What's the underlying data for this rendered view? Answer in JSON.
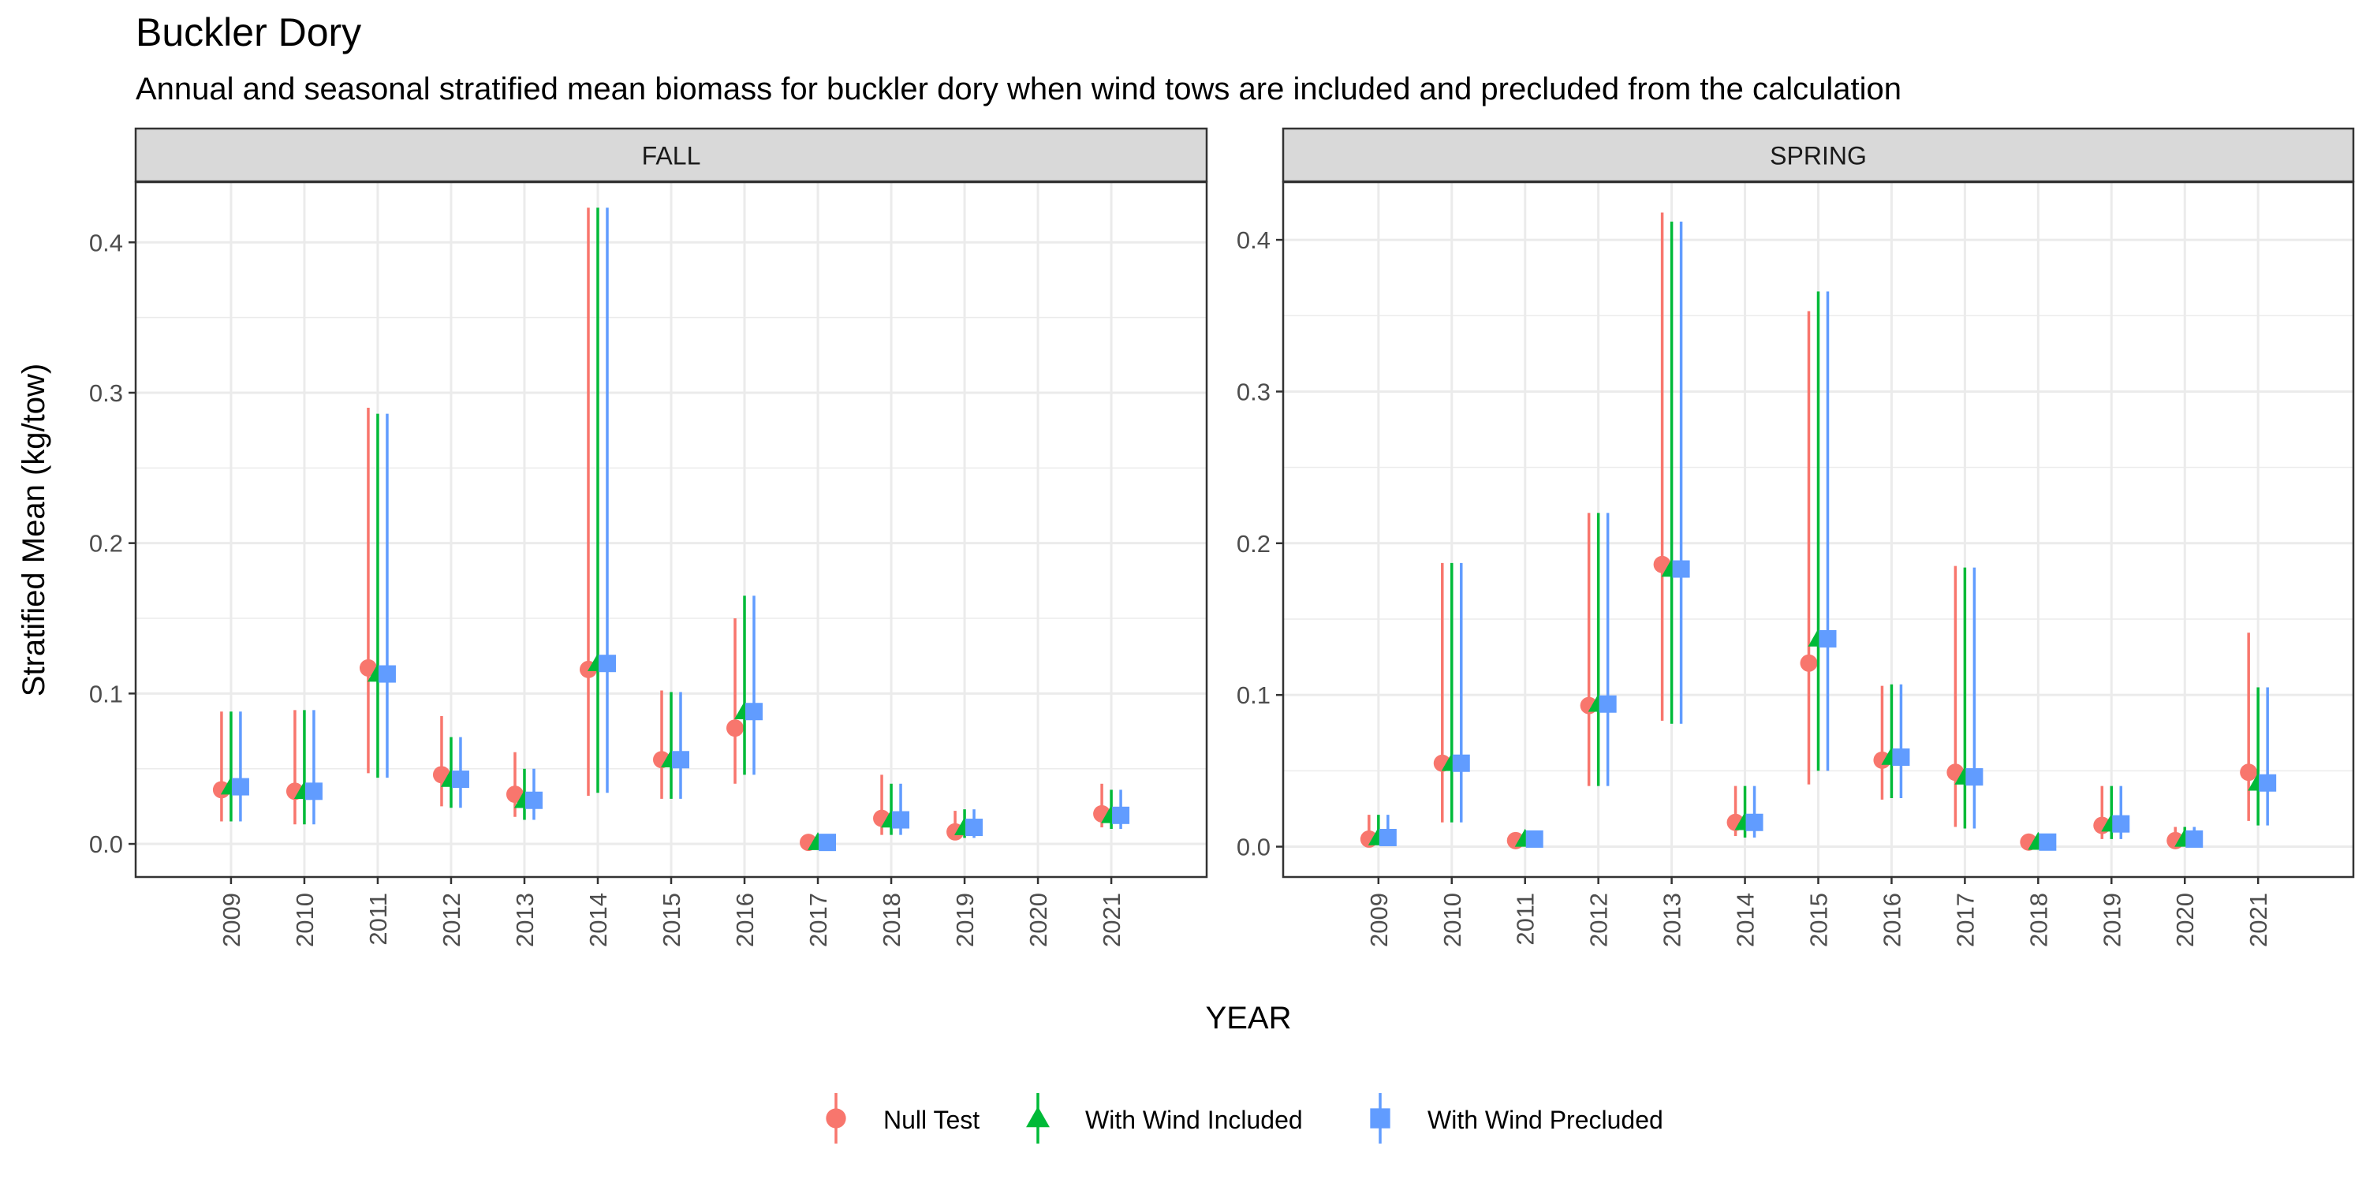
{
  "title": "Buckler Dory",
  "subtitle": "Annual and seasonal stratified mean biomass for buckler dory when wind tows are included and precluded from the calculation",
  "xlabel": "YEAR",
  "ylabel": "Stratified Mean (kg/tow)",
  "colors": {
    "null_test": "#F8766D",
    "with_wind_included": "#00BA38",
    "with_wind_precluded": "#619CFF",
    "strip_bg": "#D9D9D9",
    "grid": "#EBEBEB",
    "panel_border": "#333333",
    "text": "#000000",
    "tick_text": "#4D4D4D"
  },
  "chart_data": {
    "type": "scatter",
    "markers": {
      "Null Test": "circle",
      "With Wind Included": "triangle",
      "With Wind Precluded": "square"
    },
    "error_bars": "vertical",
    "legend_position": "bottom",
    "grid": true,
    "x_categories": [
      "2009",
      "2010",
      "2011",
      "2012",
      "2013",
      "2014",
      "2015",
      "2016",
      "2017",
      "2018",
      "2019",
      "2020",
      "2021"
    ],
    "legend": [
      "Null Test",
      "With Wind Included",
      "With Wind Precluded"
    ],
    "panels": [
      {
        "strip": "FALL",
        "ylim": [
          -0.022,
          0.44
        ],
        "yticks": [
          0.0,
          0.1,
          0.2,
          0.3,
          0.4
        ],
        "ytick_labels": [
          "0.0",
          "0.1",
          "0.2",
          "0.3",
          "0.4"
        ],
        "series": [
          {
            "name": "Null Test",
            "points": [
              {
                "x": "2009",
                "y": 0.036,
                "lo": 0.015,
                "hi": 0.088
              },
              {
                "x": "2010",
                "y": 0.035,
                "lo": 0.013,
                "hi": 0.089
              },
              {
                "x": "2011",
                "y": 0.117,
                "lo": 0.047,
                "hi": 0.29
              },
              {
                "x": "2012",
                "y": 0.046,
                "lo": 0.025,
                "hi": 0.085
              },
              {
                "x": "2013",
                "y": 0.033,
                "lo": 0.018,
                "hi": 0.061
              },
              {
                "x": "2014",
                "y": 0.116,
                "lo": 0.032,
                "hi": 0.423
              },
              {
                "x": "2015",
                "y": 0.056,
                "lo": 0.03,
                "hi": 0.102
              },
              {
                "x": "2016",
                "y": 0.077,
                "lo": 0.04,
                "hi": 0.15
              },
              {
                "x": "2017",
                "y": 0.001,
                "lo": 0.0,
                "hi": 0.004
              },
              {
                "x": "2018",
                "y": 0.017,
                "lo": 0.006,
                "hi": 0.046
              },
              {
                "x": "2019",
                "y": 0.008,
                "lo": 0.003,
                "hi": 0.022
              },
              {
                "x": "2021",
                "y": 0.02,
                "lo": 0.011,
                "hi": 0.04
              }
            ]
          },
          {
            "name": "With Wind Included",
            "points": [
              {
                "x": "2009",
                "y": 0.038,
                "lo": 0.015,
                "hi": 0.088
              },
              {
                "x": "2010",
                "y": 0.035,
                "lo": 0.013,
                "hi": 0.089
              },
              {
                "x": "2011",
                "y": 0.113,
                "lo": 0.044,
                "hi": 0.286
              },
              {
                "x": "2012",
                "y": 0.043,
                "lo": 0.024,
                "hi": 0.071
              },
              {
                "x": "2013",
                "y": 0.029,
                "lo": 0.016,
                "hi": 0.05
              },
              {
                "x": "2014",
                "y": 0.12,
                "lo": 0.034,
                "hi": 0.423
              },
              {
                "x": "2015",
                "y": 0.056,
                "lo": 0.03,
                "hi": 0.101
              },
              {
                "x": "2016",
                "y": 0.088,
                "lo": 0.046,
                "hi": 0.165
              },
              {
                "x": "2017",
                "y": 0.001,
                "lo": 0.0,
                "hi": 0.004
              },
              {
                "x": "2018",
                "y": 0.016,
                "lo": 0.006,
                "hi": 0.04
              },
              {
                "x": "2019",
                "y": 0.011,
                "lo": 0.004,
                "hi": 0.023
              },
              {
                "x": "2021",
                "y": 0.019,
                "lo": 0.01,
                "hi": 0.036
              }
            ]
          },
          {
            "name": "With Wind Precluded",
            "points": [
              {
                "x": "2009",
                "y": 0.038,
                "lo": 0.015,
                "hi": 0.088
              },
              {
                "x": "2010",
                "y": 0.035,
                "lo": 0.013,
                "hi": 0.089
              },
              {
                "x": "2011",
                "y": 0.113,
                "lo": 0.044,
                "hi": 0.286
              },
              {
                "x": "2012",
                "y": 0.043,
                "lo": 0.024,
                "hi": 0.071
              },
              {
                "x": "2013",
                "y": 0.029,
                "lo": 0.016,
                "hi": 0.05
              },
              {
                "x": "2014",
                "y": 0.12,
                "lo": 0.034,
                "hi": 0.423
              },
              {
                "x": "2015",
                "y": 0.056,
                "lo": 0.03,
                "hi": 0.101
              },
              {
                "x": "2016",
                "y": 0.088,
                "lo": 0.046,
                "hi": 0.165
              },
              {
                "x": "2017",
                "y": 0.001,
                "lo": 0.0,
                "hi": 0.004
              },
              {
                "x": "2018",
                "y": 0.016,
                "lo": 0.006,
                "hi": 0.04
              },
              {
                "x": "2019",
                "y": 0.011,
                "lo": 0.004,
                "hi": 0.023
              },
              {
                "x": "2021",
                "y": 0.019,
                "lo": 0.01,
                "hi": 0.036
              }
            ]
          }
        ]
      },
      {
        "strip": "SPRING",
        "ylim": [
          -0.02,
          0.438
        ],
        "yticks": [
          0.0,
          0.1,
          0.2,
          0.3,
          0.4
        ],
        "ytick_labels": [
          "0.0",
          "0.1",
          "0.2",
          "0.3",
          "0.4"
        ],
        "series": [
          {
            "name": "Null Test",
            "points": [
              {
                "x": "2009",
                "y": 0.005,
                "lo": 0.001,
                "hi": 0.021
              },
              {
                "x": "2010",
                "y": 0.055,
                "lo": 0.016,
                "hi": 0.187
              },
              {
                "x": "2011",
                "y": 0.004,
                "lo": 0.0,
                "hi": 0.008
              },
              {
                "x": "2012",
                "y": 0.093,
                "lo": 0.04,
                "hi": 0.22
              },
              {
                "x": "2013",
                "y": 0.186,
                "lo": 0.083,
                "hi": 0.418
              },
              {
                "x": "2014",
                "y": 0.016,
                "lo": 0.007,
                "hi": 0.04
              },
              {
                "x": "2015",
                "y": 0.121,
                "lo": 0.041,
                "hi": 0.353
              },
              {
                "x": "2016",
                "y": 0.057,
                "lo": 0.031,
                "hi": 0.106
              },
              {
                "x": "2017",
                "y": 0.049,
                "lo": 0.013,
                "hi": 0.185
              },
              {
                "x": "2018",
                "y": 0.003,
                "lo": 0.0,
                "hi": 0.008
              },
              {
                "x": "2019",
                "y": 0.014,
                "lo": 0.005,
                "hi": 0.04
              },
              {
                "x": "2020",
                "y": 0.004,
                "lo": 0.001,
                "hi": 0.013
              },
              {
                "x": "2021",
                "y": 0.049,
                "lo": 0.017,
                "hi": 0.141
              }
            ]
          },
          {
            "name": "With Wind Included",
            "points": [
              {
                "x": "2009",
                "y": 0.006,
                "lo": 0.001,
                "hi": 0.021
              },
              {
                "x": "2010",
                "y": 0.055,
                "lo": 0.016,
                "hi": 0.187
              },
              {
                "x": "2011",
                "y": 0.005,
                "lo": 0.0,
                "hi": 0.008
              },
              {
                "x": "2012",
                "y": 0.094,
                "lo": 0.04,
                "hi": 0.22
              },
              {
                "x": "2013",
                "y": 0.183,
                "lo": 0.081,
                "hi": 0.412
              },
              {
                "x": "2014",
                "y": 0.016,
                "lo": 0.006,
                "hi": 0.04
              },
              {
                "x": "2015",
                "y": 0.137,
                "lo": 0.05,
                "hi": 0.366
              },
              {
                "x": "2016",
                "y": 0.059,
                "lo": 0.032,
                "hi": 0.107
              },
              {
                "x": "2017",
                "y": 0.046,
                "lo": 0.012,
                "hi": 0.184
              },
              {
                "x": "2018",
                "y": 0.003,
                "lo": 0.0,
                "hi": 0.008
              },
              {
                "x": "2019",
                "y": 0.015,
                "lo": 0.005,
                "hi": 0.04
              },
              {
                "x": "2020",
                "y": 0.005,
                "lo": 0.001,
                "hi": 0.013
              },
              {
                "x": "2021",
                "y": 0.042,
                "lo": 0.014,
                "hi": 0.105
              }
            ]
          },
          {
            "name": "With Wind Precluded",
            "points": [
              {
                "x": "2009",
                "y": 0.006,
                "lo": 0.001,
                "hi": 0.021
              },
              {
                "x": "2010",
                "y": 0.055,
                "lo": 0.016,
                "hi": 0.187
              },
              {
                "x": "2011",
                "y": 0.005,
                "lo": 0.0,
                "hi": 0.008
              },
              {
                "x": "2012",
                "y": 0.094,
                "lo": 0.04,
                "hi": 0.22
              },
              {
                "x": "2013",
                "y": 0.183,
                "lo": 0.081,
                "hi": 0.412
              },
              {
                "x": "2014",
                "y": 0.016,
                "lo": 0.006,
                "hi": 0.04
              },
              {
                "x": "2015",
                "y": 0.137,
                "lo": 0.05,
                "hi": 0.366
              },
              {
                "x": "2016",
                "y": 0.059,
                "lo": 0.032,
                "hi": 0.107
              },
              {
                "x": "2017",
                "y": 0.046,
                "lo": 0.012,
                "hi": 0.184
              },
              {
                "x": "2018",
                "y": 0.003,
                "lo": 0.0,
                "hi": 0.008
              },
              {
                "x": "2019",
                "y": 0.015,
                "lo": 0.005,
                "hi": 0.04
              },
              {
                "x": "2020",
                "y": 0.005,
                "lo": 0.001,
                "hi": 0.013
              },
              {
                "x": "2021",
                "y": 0.042,
                "lo": 0.014,
                "hi": 0.105
              }
            ]
          }
        ]
      }
    ]
  }
}
